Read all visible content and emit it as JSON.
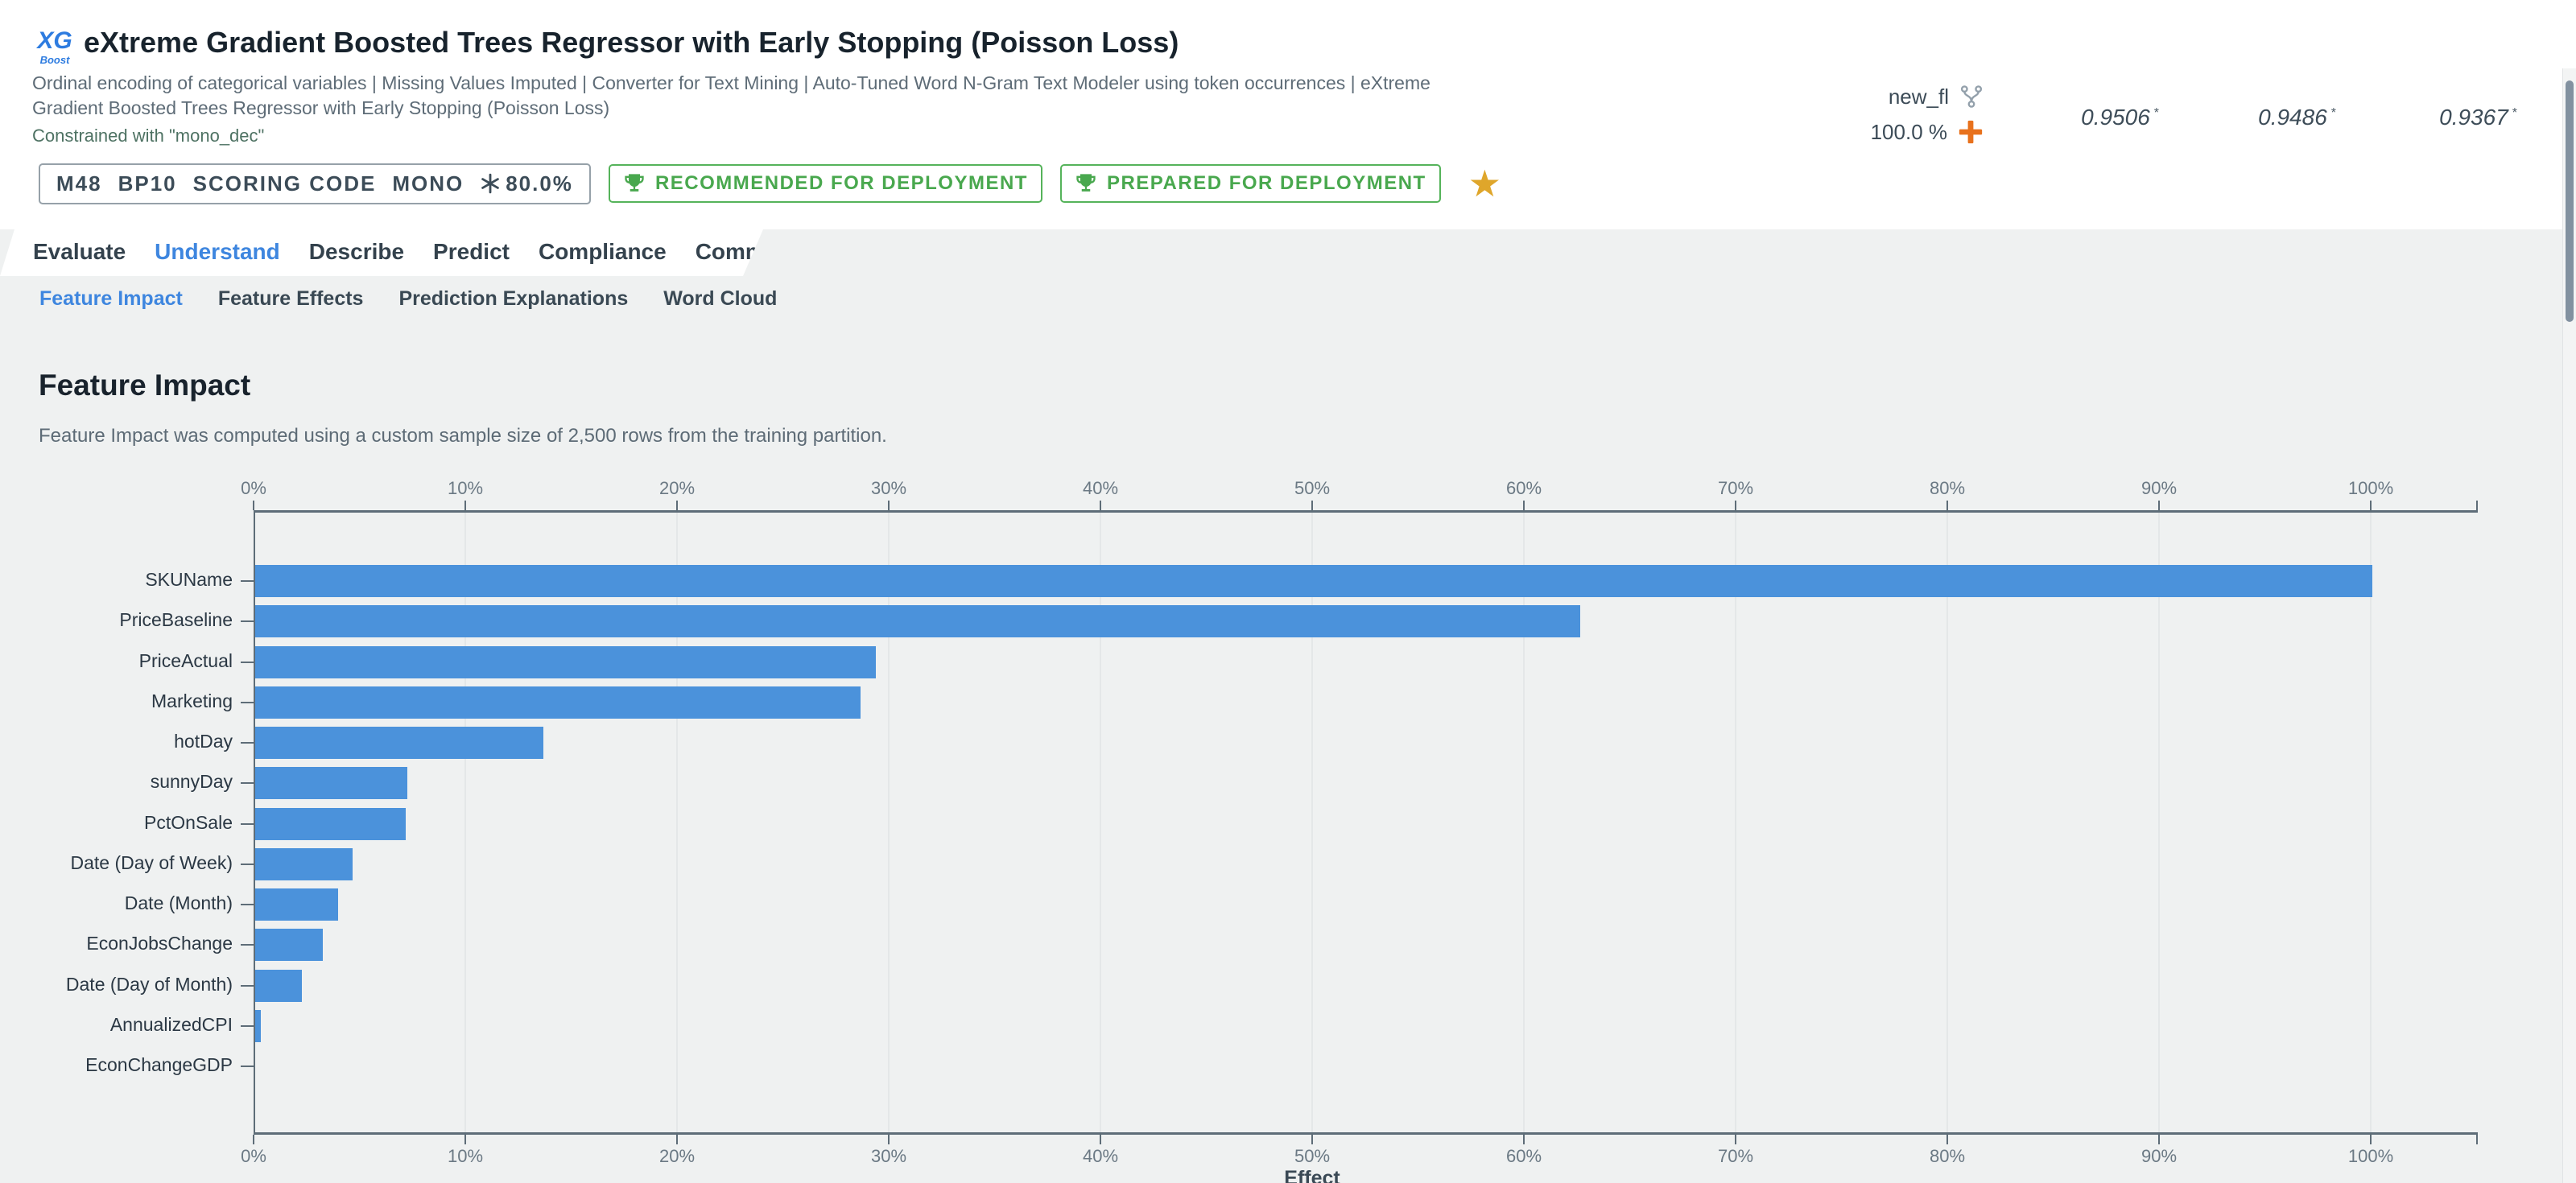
{
  "header": {
    "logo": {
      "top": "XG",
      "bottom": "Boost"
    },
    "title": "eXtreme Gradient Boosted Trees Regressor with Early Stopping (Poisson Loss)",
    "subtitle_lines": [
      "Ordinal encoding of categorical variables | Missing Values Imputed | Converter for Text Mining | Auto-Tuned Word N-Gram Text Modeler using token occurrences | eXtreme",
      "Gradient Boosted Trees Regressor with Early Stopping (Poisson Loss)"
    ],
    "constrained_note": "Constrained with \"mono_dec\"",
    "model_badge": {
      "items": [
        "M48",
        "BP10",
        "SCORING CODE",
        "MONO"
      ],
      "snowflake_value": "80.0%"
    },
    "deployment_badges": [
      "RECOMMENDED FOR DEPLOYMENT",
      "PREPARED FOR DEPLOYMENT"
    ],
    "favorite_star": "★",
    "feature_list": {
      "name": "new_fl",
      "sample_pct": "100.0 %"
    },
    "metrics": [
      {
        "value": "0.9506",
        "flag": "*"
      },
      {
        "value": "0.9486",
        "flag": "*"
      },
      {
        "value": "0.9367",
        "flag": "*"
      }
    ]
  },
  "tabs": {
    "active": "Understand",
    "items": [
      "Evaluate",
      "Understand",
      "Describe",
      "Predict",
      "Compliance",
      "Comments"
    ]
  },
  "subtabs": {
    "active": "Feature Impact",
    "items": [
      "Feature Impact",
      "Feature Effects",
      "Prediction Explanations",
      "Word Cloud"
    ]
  },
  "content": {
    "heading": "Feature Impact",
    "description": "Feature Impact was computed using a custom sample size of 2,500 rows from the training partition."
  },
  "chart_data": {
    "type": "bar",
    "orientation": "horizontal",
    "title": "Feature Impact",
    "xlabel": "Effect",
    "x_ticks": [
      "0%",
      "10%",
      "20%",
      "30%",
      "40%",
      "50%",
      "60%",
      "70%",
      "80%",
      "90%",
      "100%"
    ],
    "xlim": [
      0,
      105
    ],
    "grid": true,
    "bar_color": "#4b92db",
    "categories": [
      "SKUName",
      "PriceBaseline",
      "PriceActual",
      "Marketing",
      "hotDay",
      "sunnyDay",
      "PctOnSale",
      "Date (Day of Week)",
      "Date (Month)",
      "EconJobsChange",
      "Date (Day of Month)",
      "AnnualizedCPI",
      "EconChangeGDP"
    ],
    "values": [
      100,
      62.6,
      29.3,
      28.6,
      13.6,
      7.2,
      7.1,
      4.6,
      3.9,
      3.2,
      2.2,
      0.25,
      0
    ]
  },
  "colors": {
    "accent_blue": "#3e86df",
    "bar_blue": "#4b92db",
    "badge_green": "#4caf50",
    "star_gold": "#dfa62b",
    "plus_orange": "#e8711c",
    "axis_gray": "#5e6d78",
    "page_bg": "#eff1f1"
  }
}
